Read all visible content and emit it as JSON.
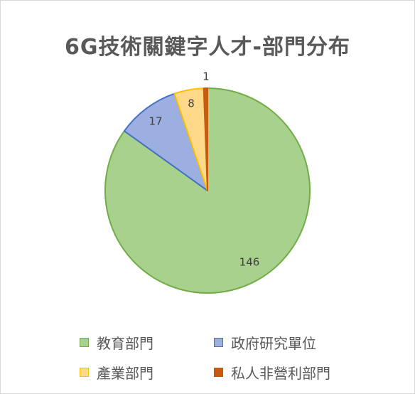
{
  "chart_data": {
    "type": "pie",
    "title": "6G技術關鍵字人才-部門分布",
    "categories": [
      "教育部門",
      "政府研究單位",
      "產業部門",
      "私人非營利部門"
    ],
    "values": [
      146,
      17,
      8,
      1
    ],
    "colors": [
      "#a9d18e",
      "#9dafe0",
      "#ffd98a",
      "#c55a11"
    ],
    "edge_colors": [
      "#70ad47",
      "#4472c4",
      "#ffc000",
      "#c55a11"
    ],
    "legend_position": "bottom"
  }
}
